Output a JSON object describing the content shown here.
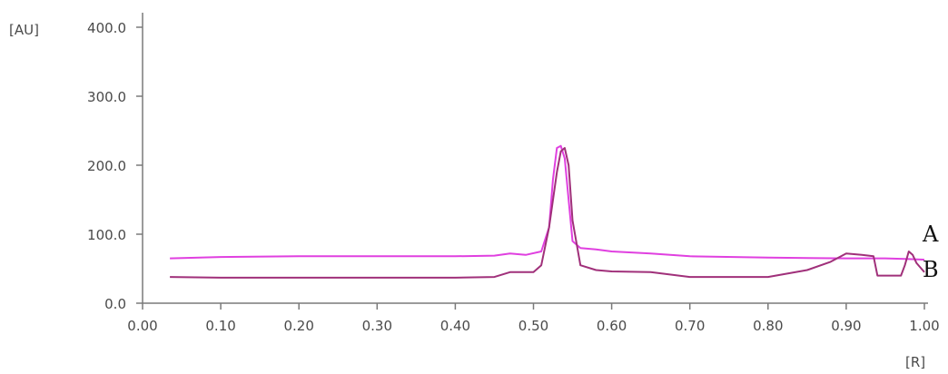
{
  "chart_data": {
    "type": "line",
    "title": "",
    "xlabel": "[R]",
    "ylabel": "[AU]",
    "xlim": [
      0.0,
      1.0
    ],
    "ylim": [
      0.0,
      400.0
    ],
    "x_ticks": [
      "0.00",
      "0.10",
      "0.20",
      "0.30",
      "0.40",
      "0.50",
      "0.60",
      "0.70",
      "0.80",
      "0.90",
      "1.00"
    ],
    "y_ticks": [
      "0.0",
      "100.0",
      "200.0",
      "300.0",
      "400.0"
    ],
    "grid": false,
    "series": [
      {
        "name": "A",
        "color": "#e040e0",
        "x": [
          0.035,
          0.1,
          0.2,
          0.3,
          0.4,
          0.45,
          0.47,
          0.49,
          0.51,
          0.52,
          0.525,
          0.53,
          0.535,
          0.54,
          0.545,
          0.55,
          0.56,
          0.58,
          0.6,
          0.65,
          0.7,
          0.8,
          0.9,
          0.95,
          0.98,
          1.0
        ],
        "y": [
          65,
          67,
          68,
          68,
          68,
          69,
          72,
          70,
          75,
          110,
          180,
          225,
          228,
          210,
          150,
          90,
          80,
          78,
          75,
          72,
          68,
          66,
          65,
          65,
          64,
          63
        ]
      },
      {
        "name": "B",
        "color": "#a0307a",
        "x": [
          0.035,
          0.1,
          0.2,
          0.3,
          0.4,
          0.45,
          0.47,
          0.49,
          0.5,
          0.51,
          0.52,
          0.53,
          0.535,
          0.54,
          0.545,
          0.55,
          0.56,
          0.58,
          0.6,
          0.65,
          0.7,
          0.8,
          0.85,
          0.88,
          0.9,
          0.92,
          0.935,
          0.94,
          0.97,
          0.975,
          0.98,
          0.985,
          0.99,
          1.0
        ],
        "y": [
          38,
          37,
          37,
          37,
          37,
          38,
          45,
          45,
          45,
          55,
          110,
          190,
          220,
          225,
          200,
          120,
          55,
          48,
          46,
          45,
          38,
          38,
          48,
          60,
          72,
          70,
          68,
          40,
          40,
          55,
          75,
          70,
          58,
          45
        ]
      }
    ]
  }
}
